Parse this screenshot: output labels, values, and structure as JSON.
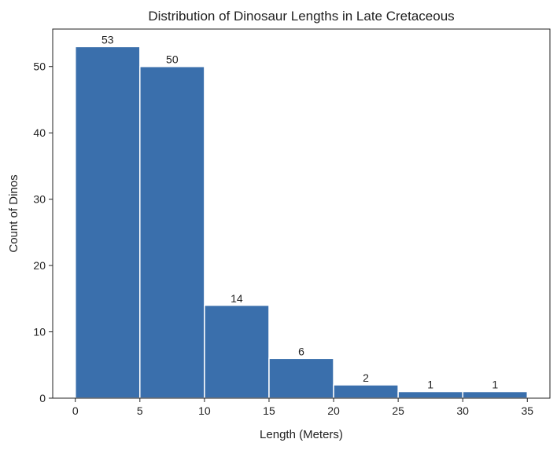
{
  "chart_data": {
    "type": "bar",
    "title": "Distribution of Dinosaur Lengths in Late Cretaceous",
    "xlabel": "Length (Meters)",
    "ylabel": "Count of Dinos",
    "bins": [
      {
        "x0": 0,
        "x1": 5,
        "value": 53
      },
      {
        "x0": 5,
        "x1": 10,
        "value": 50
      },
      {
        "x0": 10,
        "x1": 15,
        "value": 14
      },
      {
        "x0": 15,
        "x1": 20,
        "value": 6
      },
      {
        "x0": 20,
        "x1": 25,
        "value": 2
      },
      {
        "x0": 25,
        "x1": 30,
        "value": 1
      },
      {
        "x0": 30,
        "x1": 35,
        "value": 1
      }
    ],
    "data_labels": [
      "53",
      "50",
      "14",
      "6",
      "2",
      "1",
      "1"
    ],
    "xticks": [
      0,
      5,
      10,
      15,
      20,
      25,
      30,
      35
    ],
    "yticks": [
      0,
      10,
      20,
      30,
      40,
      50
    ],
    "xlim": [
      -1.75,
      36.75
    ],
    "ylim": [
      0,
      55.65
    ],
    "bar_color": "#3a6fac",
    "edge_color": "#ffffff",
    "grid": false,
    "legend": false
  }
}
